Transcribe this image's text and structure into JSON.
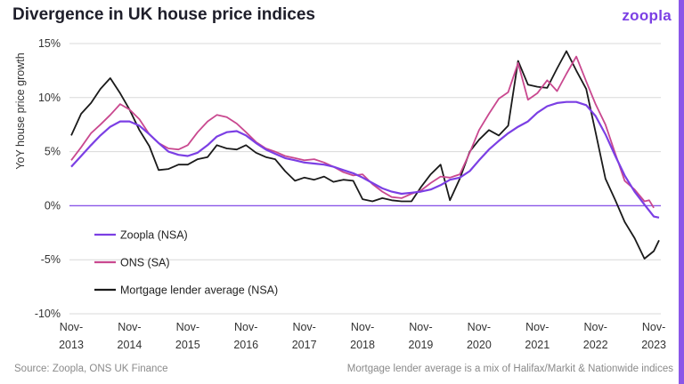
{
  "header": {
    "title": "Divergence in UK house price indices",
    "logo": "zoopla"
  },
  "footer": {
    "source": "Source: Zoopla, ONS UK Finance",
    "note": "Mortgage lender average is a mix of Halifax/Markit & Nationwide indices"
  },
  "colors": {
    "zoopla": "#7b3fe4",
    "ons": "#c9488f",
    "mortgage": "#1a1a1a",
    "zero_line": "#8a57e8",
    "grid": "#d8d8d8",
    "sidebar": "#8a57e8"
  },
  "chart_data": {
    "type": "line",
    "ylabel": "YoY house price growth",
    "ylim": [
      -10,
      15
    ],
    "yticks": [
      "15%",
      "10%",
      "5%",
      "0%",
      "-5%",
      "-10%"
    ],
    "yvalues": [
      15,
      10,
      5,
      0,
      -5,
      -10
    ],
    "xlim": [
      2013.83,
      2023.92
    ],
    "xticks": [
      {
        "top": "Nov-",
        "bottom": "2013",
        "x": 2013.83
      },
      {
        "top": "Nov-",
        "bottom": "2014",
        "x": 2014.83
      },
      {
        "top": "Nov-",
        "bottom": "2015",
        "x": 2015.83
      },
      {
        "top": "Nov-",
        "bottom": "2016",
        "x": 2016.83
      },
      {
        "top": "Nov-",
        "bottom": "2017",
        "x": 2017.83
      },
      {
        "top": "Nov-",
        "bottom": "2018",
        "x": 2018.83
      },
      {
        "top": "Nov-",
        "bottom": "2019",
        "x": 2019.83
      },
      {
        "top": "Nov-",
        "bottom": "2020",
        "x": 2020.83
      },
      {
        "top": "Nov-",
        "bottom": "2021",
        "x": 2021.83
      },
      {
        "top": "Nov-",
        "bottom": "2022",
        "x": 2022.83
      },
      {
        "top": "Nov-",
        "bottom": "2023",
        "x": 2023.83
      }
    ],
    "grid": "horizontal",
    "legend_position": "bottom-left",
    "series": [
      {
        "name": "Zoopla (NSA)",
        "color_key": "zoopla",
        "points": [
          [
            2013.83,
            3.6
          ],
          [
            2014.0,
            4.6
          ],
          [
            2014.17,
            5.6
          ],
          [
            2014.33,
            6.5
          ],
          [
            2014.5,
            7.3
          ],
          [
            2014.67,
            7.8
          ],
          [
            2014.83,
            7.8
          ],
          [
            2015.0,
            7.4
          ],
          [
            2015.17,
            6.6
          ],
          [
            2015.33,
            5.8
          ],
          [
            2015.5,
            5.0
          ],
          [
            2015.67,
            4.7
          ],
          [
            2015.83,
            4.6
          ],
          [
            2016.0,
            4.9
          ],
          [
            2016.17,
            5.6
          ],
          [
            2016.33,
            6.4
          ],
          [
            2016.5,
            6.8
          ],
          [
            2016.67,
            6.9
          ],
          [
            2016.83,
            6.5
          ],
          [
            2017.0,
            5.8
          ],
          [
            2017.17,
            5.2
          ],
          [
            2017.33,
            4.8
          ],
          [
            2017.5,
            4.4
          ],
          [
            2017.67,
            4.2
          ],
          [
            2017.83,
            4.0
          ],
          [
            2018.0,
            3.9
          ],
          [
            2018.17,
            3.8
          ],
          [
            2018.33,
            3.6
          ],
          [
            2018.5,
            3.3
          ],
          [
            2018.67,
            3.0
          ],
          [
            2018.83,
            2.6
          ],
          [
            2019.0,
            2.1
          ],
          [
            2019.17,
            1.6
          ],
          [
            2019.33,
            1.3
          ],
          [
            2019.5,
            1.1
          ],
          [
            2019.67,
            1.2
          ],
          [
            2019.83,
            1.3
          ],
          [
            2020.0,
            1.5
          ],
          [
            2020.17,
            1.9
          ],
          [
            2020.33,
            2.4
          ],
          [
            2020.5,
            2.6
          ],
          [
            2020.67,
            3.2
          ],
          [
            2020.83,
            4.2
          ],
          [
            2021.0,
            5.2
          ],
          [
            2021.17,
            6.0
          ],
          [
            2021.33,
            6.7
          ],
          [
            2021.5,
            7.3
          ],
          [
            2021.67,
            7.8
          ],
          [
            2021.83,
            8.6
          ],
          [
            2022.0,
            9.2
          ],
          [
            2022.17,
            9.5
          ],
          [
            2022.33,
            9.6
          ],
          [
            2022.5,
            9.6
          ],
          [
            2022.67,
            9.3
          ],
          [
            2022.83,
            8.3
          ],
          [
            2023.0,
            6.6
          ],
          [
            2023.17,
            4.6
          ],
          [
            2023.33,
            2.8
          ],
          [
            2023.5,
            1.3
          ],
          [
            2023.67,
            0.1
          ],
          [
            2023.83,
            -1.0
          ],
          [
            2023.92,
            -1.1
          ]
        ]
      },
      {
        "name": "ONS (SA)",
        "color_key": "ons",
        "points": [
          [
            2013.83,
            4.2
          ],
          [
            2014.0,
            5.4
          ],
          [
            2014.17,
            6.7
          ],
          [
            2014.33,
            7.5
          ],
          [
            2014.5,
            8.4
          ],
          [
            2014.67,
            9.4
          ],
          [
            2014.83,
            8.9
          ],
          [
            2015.0,
            8.0
          ],
          [
            2015.17,
            6.6
          ],
          [
            2015.33,
            5.8
          ],
          [
            2015.5,
            5.3
          ],
          [
            2015.67,
            5.2
          ],
          [
            2015.83,
            5.6
          ],
          [
            2016.0,
            6.8
          ],
          [
            2016.17,
            7.8
          ],
          [
            2016.33,
            8.4
          ],
          [
            2016.5,
            8.2
          ],
          [
            2016.67,
            7.6
          ],
          [
            2016.83,
            6.8
          ],
          [
            2017.0,
            5.9
          ],
          [
            2017.17,
            5.3
          ],
          [
            2017.33,
            5.0
          ],
          [
            2017.5,
            4.6
          ],
          [
            2017.67,
            4.4
          ],
          [
            2017.83,
            4.2
          ],
          [
            2018.0,
            4.3
          ],
          [
            2018.17,
            4.0
          ],
          [
            2018.33,
            3.6
          ],
          [
            2018.5,
            3.1
          ],
          [
            2018.67,
            2.8
          ],
          [
            2018.83,
            2.9
          ],
          [
            2019.0,
            2.0
          ],
          [
            2019.17,
            1.3
          ],
          [
            2019.33,
            0.8
          ],
          [
            2019.5,
            0.7
          ],
          [
            2019.67,
            1.1
          ],
          [
            2019.83,
            1.4
          ],
          [
            2020.0,
            2.1
          ],
          [
            2020.17,
            2.7
          ],
          [
            2020.33,
            2.6
          ],
          [
            2020.5,
            2.9
          ],
          [
            2020.67,
            4.9
          ],
          [
            2020.83,
            7.0
          ],
          [
            2021.0,
            8.5
          ],
          [
            2021.17,
            9.9
          ],
          [
            2021.33,
            10.5
          ],
          [
            2021.5,
            13.2
          ],
          [
            2021.67,
            9.8
          ],
          [
            2021.83,
            10.4
          ],
          [
            2022.0,
            11.6
          ],
          [
            2022.17,
            10.6
          ],
          [
            2022.33,
            12.2
          ],
          [
            2022.5,
            13.8
          ],
          [
            2022.67,
            11.5
          ],
          [
            2022.83,
            9.4
          ],
          [
            2023.0,
            7.5
          ],
          [
            2023.17,
            4.8
          ],
          [
            2023.33,
            2.3
          ],
          [
            2023.5,
            1.5
          ],
          [
            2023.67,
            0.4
          ],
          [
            2023.75,
            0.5
          ],
          [
            2023.83,
            -0.2
          ]
        ]
      },
      {
        "name": "Mortgage lender average (NSA)",
        "color_key": "mortgage",
        "points": [
          [
            2013.83,
            6.5
          ],
          [
            2014.0,
            8.5
          ],
          [
            2014.17,
            9.5
          ],
          [
            2014.33,
            10.8
          ],
          [
            2014.5,
            11.8
          ],
          [
            2014.67,
            10.4
          ],
          [
            2014.83,
            8.9
          ],
          [
            2015.0,
            7.0
          ],
          [
            2015.17,
            5.5
          ],
          [
            2015.33,
            3.3
          ],
          [
            2015.5,
            3.4
          ],
          [
            2015.67,
            3.8
          ],
          [
            2015.83,
            3.8
          ],
          [
            2016.0,
            4.3
          ],
          [
            2016.17,
            4.5
          ],
          [
            2016.33,
            5.6
          ],
          [
            2016.5,
            5.3
          ],
          [
            2016.67,
            5.2
          ],
          [
            2016.83,
            5.6
          ],
          [
            2017.0,
            4.9
          ],
          [
            2017.17,
            4.5
          ],
          [
            2017.33,
            4.3
          ],
          [
            2017.5,
            3.2
          ],
          [
            2017.67,
            2.3
          ],
          [
            2017.83,
            2.6
          ],
          [
            2018.0,
            2.4
          ],
          [
            2018.17,
            2.7
          ],
          [
            2018.33,
            2.2
          ],
          [
            2018.5,
            2.4
          ],
          [
            2018.67,
            2.3
          ],
          [
            2018.83,
            0.6
          ],
          [
            2019.0,
            0.4
          ],
          [
            2019.17,
            0.7
          ],
          [
            2019.33,
            0.5
          ],
          [
            2019.5,
            0.4
          ],
          [
            2019.67,
            0.4
          ],
          [
            2019.83,
            1.7
          ],
          [
            2020.0,
            2.9
          ],
          [
            2020.17,
            3.8
          ],
          [
            2020.33,
            0.5
          ],
          [
            2020.5,
            2.5
          ],
          [
            2020.67,
            5.0
          ],
          [
            2020.83,
            6.1
          ],
          [
            2021.0,
            7.0
          ],
          [
            2021.17,
            6.5
          ],
          [
            2021.33,
            7.4
          ],
          [
            2021.5,
            13.4
          ],
          [
            2021.67,
            11.2
          ],
          [
            2021.83,
            11.0
          ],
          [
            2022.0,
            10.9
          ],
          [
            2022.17,
            12.7
          ],
          [
            2022.33,
            14.3
          ],
          [
            2022.5,
            12.5
          ],
          [
            2022.67,
            10.8
          ],
          [
            2022.83,
            6.8
          ],
          [
            2023.0,
            2.5
          ],
          [
            2023.17,
            0.5
          ],
          [
            2023.33,
            -1.5
          ],
          [
            2023.5,
            -3.0
          ],
          [
            2023.67,
            -4.9
          ],
          [
            2023.83,
            -4.2
          ],
          [
            2023.92,
            -3.2
          ]
        ]
      }
    ]
  }
}
